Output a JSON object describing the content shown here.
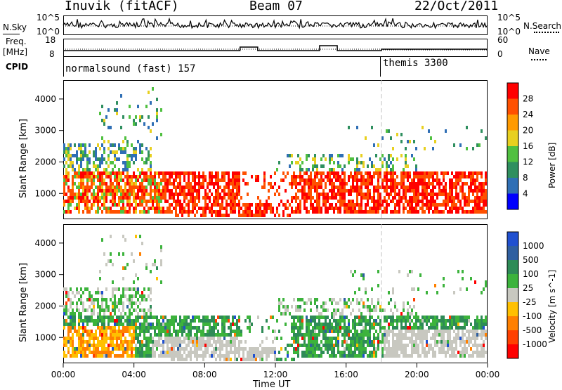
{
  "header": {
    "station": "Inuvik (fitACF)",
    "beam": "Beam 07",
    "date": "22/Oct/2011"
  },
  "left_labels": {
    "nsky": "N.Sky",
    "freq": "Freq.",
    "freq_unit": "[MHz]",
    "cpid": "CPID"
  },
  "right_labels": {
    "nsearch": "N.Search",
    "nave": "Nave"
  },
  "noise_axis": {
    "top": "10^5",
    "bottom": "10^0"
  },
  "freq_axis": {
    "top": "18",
    "bottom": "8"
  },
  "nave_axis": {
    "top": "60",
    "bottom": "0"
  },
  "cpid_programs": [
    {
      "label": "normalsound (fast) 157",
      "start_hour": 0
    },
    {
      "label": "themis 3300",
      "start_hour": 18
    }
  ],
  "colors": {
    "power": [
      "#0000ff",
      "#2f6fb5",
      "#2f8f5f",
      "#50c040",
      "#e8d020",
      "#ff9a00",
      "#ff5000",
      "#ff0000"
    ],
    "velocity": [
      "#2050d0",
      "#2f5fa0",
      "#2e8b57",
      "#3cb33c",
      "#c8c8c0",
      "#ffc000",
      "#ff8000",
      "#ff4000",
      "#ff0000"
    ]
  },
  "chart_data": [
    {
      "type": "heatmap",
      "title": "",
      "xlabel": "Time UT",
      "ylabel": "Slant Range [km]",
      "x_range": [
        "00:00",
        "00:00"
      ],
      "ylim": [
        180,
        4600
      ],
      "x_ticks": [
        "00:00",
        "04:00",
        "08:00",
        "12:00",
        "16:00",
        "20:00",
        "00:00"
      ],
      "y_ticks": [
        "1000",
        "2000",
        "3000",
        "4000"
      ],
      "colorbar": {
        "label": "Power [dB]",
        "ticks": [
          "4",
          "8",
          "12",
          "16",
          "20",
          "24",
          "28"
        ],
        "range": [
          0,
          30
        ]
      },
      "values_note": "dense echoes 600-1600 km; strongest (>24 dB) 06:00-12:30 and 14:00-24:00"
    },
    {
      "type": "heatmap",
      "title": "",
      "xlabel": "Time UT",
      "ylabel": "Slant Range [km]",
      "x_range": [
        "00:00",
        "00:00"
      ],
      "ylim": [
        180,
        4600
      ],
      "x_ticks": [
        "00:00",
        "04:00",
        "08:00",
        "12:00",
        "16:00",
        "20:00",
        "00:00"
      ],
      "y_ticks": [
        "1000",
        "2000",
        "3000",
        "4000"
      ],
      "colorbar": {
        "label": "Velocity [m s^-1]",
        "ticks": [
          "1000",
          "500",
          "100",
          "25",
          "-25",
          "-100",
          "-500",
          "-1000"
        ]
      }
    }
  ],
  "axis_title": "Time UT"
}
